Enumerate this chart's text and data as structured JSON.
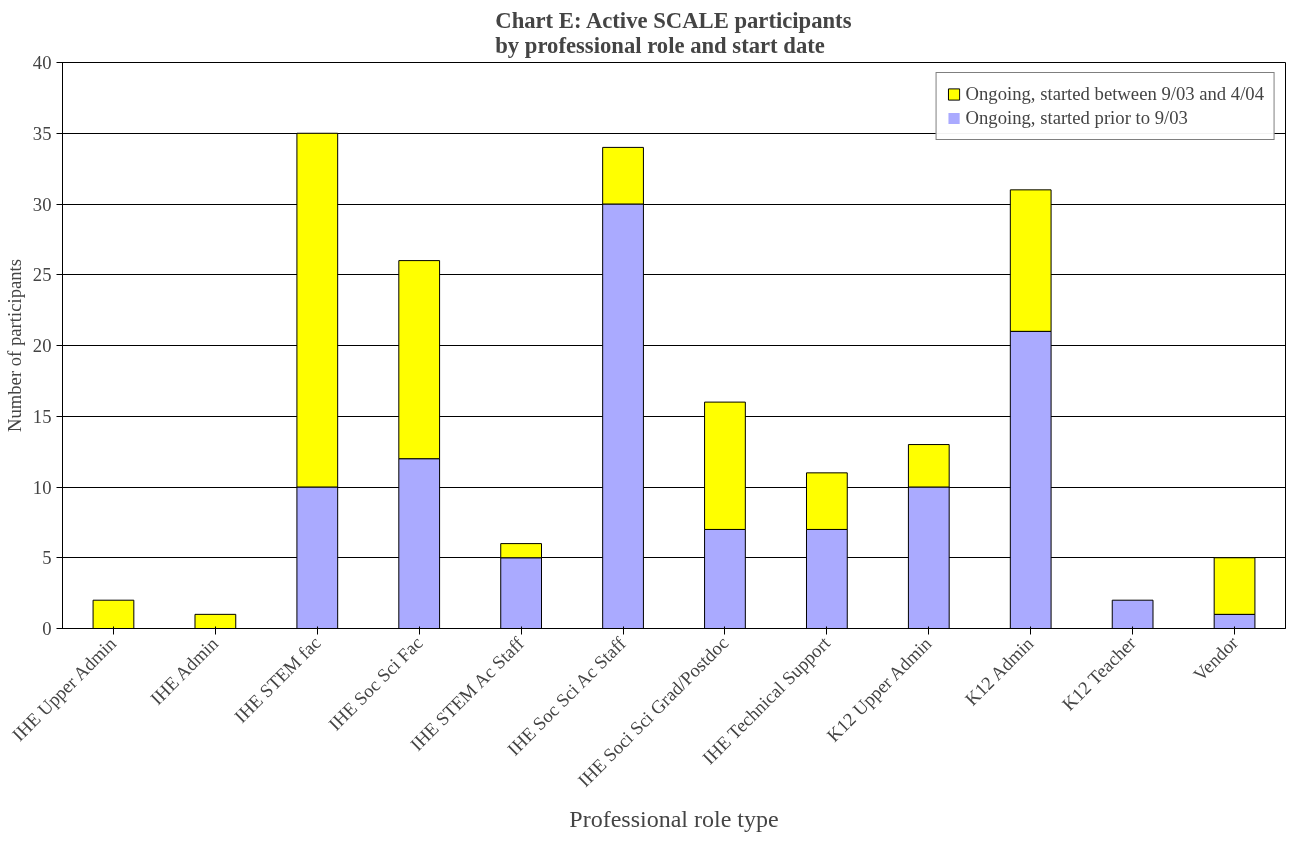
{
  "chart_data": {
    "type": "bar",
    "stacked": true,
    "title": "Chart E: Active SCALE participants\nby professional role and start date",
    "xlabel": "Professional role type",
    "ylabel": "Number of participants",
    "categories": [
      "IHE Upper Admin",
      "IHE Admin",
      "IHE STEM fac",
      "IHE Soc Sci Fac",
      "IHE STEM Ac Staff",
      "IHE Soc Sci Ac Staff",
      "IHE Soci Sci Grad/Postdoc",
      "IHE Technical Support",
      "K12 Upper Admin",
      "K12 Admin",
      "K12 Teacher",
      "Vendor"
    ],
    "series": [
      {
        "name": "Ongoing, started prior to 9/03",
        "color": "#aaaaff",
        "values": [
          0,
          0,
          10,
          12,
          5,
          30,
          7,
          7,
          10,
          21,
          2,
          1
        ]
      },
      {
        "name": "Ongoing, started between 9/03 and 4/04",
        "color": "#ffff00",
        "values": [
          2,
          1,
          25,
          14,
          1,
          4,
          9,
          4,
          3,
          10,
          0,
          4
        ]
      }
    ],
    "ylim": [
      0,
      40
    ],
    "yticks": [
      0,
      5,
      10,
      15,
      20,
      25,
      30,
      35,
      40
    ],
    "grid": "y",
    "legend": "top right"
  }
}
